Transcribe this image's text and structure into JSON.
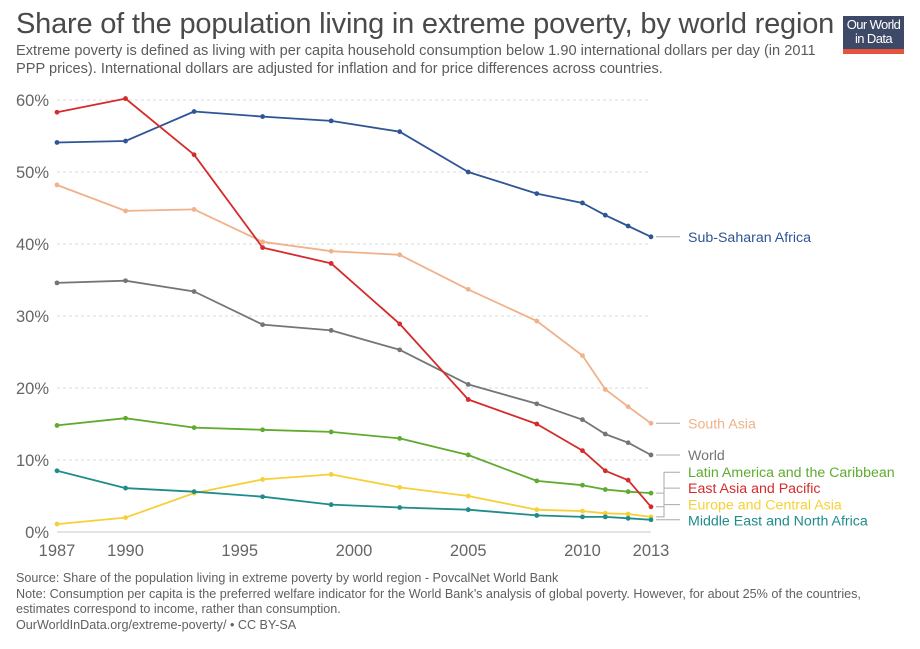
{
  "header": {
    "title": "Share of the population living in extreme poverty, by world region",
    "subtitle": "Extreme poverty is defined as living with per capita household consumption below 1.90 international dollars per day (in 2011 PPP prices). International dollars are adjusted for inflation and for price differences across countries.",
    "logo_line1": "Our World",
    "logo_line2": "in Data"
  },
  "colors": {
    "logo_bg": "#3d4966",
    "logo_accent": "#e5533d"
  },
  "footer": {
    "source": "Source: Share of the population living in extreme poverty by world region - PovcalNet World Bank",
    "note": "Note: Consumption per capita is the preferred welfare indicator for the World Bank’s analysis of global poverty. However, for about 25% of the countries, estimates correspond to income, rather than consumption.",
    "url": "OurWorldInData.org/extreme-poverty/ • CC BY-SA"
  },
  "chart_data": {
    "type": "line",
    "title": "Share of the population living in extreme poverty, by world region",
    "xlabel": "",
    "ylabel": "",
    "x": [
      1987,
      1990,
      1993,
      1996,
      1999,
      2002,
      2005,
      2008,
      2010,
      2011,
      2012,
      2013
    ],
    "xlim": [
      1987,
      2013
    ],
    "ylim": [
      0,
      60
    ],
    "x_ticks": [
      1987,
      1990,
      1995,
      2000,
      2005,
      2010,
      2013
    ],
    "y_ticks": [
      0,
      10,
      20,
      30,
      40,
      50,
      60
    ],
    "y_tick_labels": [
      "0%",
      "10%",
      "20%",
      "30%",
      "40%",
      "50%",
      "60%"
    ],
    "grid": "horizontal dashed",
    "legend": "right (line-end labels)",
    "series": [
      {
        "name": "Sub-Saharan Africa",
        "color": "#2e5596",
        "values": [
          54.1,
          54.3,
          58.4,
          57.7,
          57.1,
          55.6,
          50.0,
          47.0,
          45.7,
          44.0,
          42.5,
          41.0
        ]
      },
      {
        "name": "South Asia",
        "color": "#f0b28a",
        "values": [
          48.2,
          44.6,
          44.8,
          40.3,
          39.0,
          38.5,
          33.7,
          29.3,
          24.5,
          19.8,
          17.4,
          15.1
        ]
      },
      {
        "name": "World",
        "color": "#757575",
        "values": [
          34.6,
          34.9,
          33.4,
          28.8,
          28.0,
          25.3,
          20.5,
          17.8,
          15.6,
          13.6,
          12.4,
          10.7
        ]
      },
      {
        "name": "Latin America and the Caribbean",
        "color": "#5fab2f",
        "values": [
          14.8,
          15.8,
          14.5,
          14.2,
          13.9,
          13.0,
          10.7,
          7.1,
          6.5,
          5.9,
          5.6,
          5.4
        ]
      },
      {
        "name": "East Asia and Pacific",
        "color": "#d42b2b",
        "values": [
          58.3,
          60.2,
          52.4,
          39.5,
          37.3,
          28.9,
          18.4,
          15.0,
          11.3,
          8.5,
          7.2,
          3.5
        ]
      },
      {
        "name": "Europe and Central Asia",
        "color": "#f7d038",
        "values": [
          1.1,
          2.0,
          5.4,
          7.3,
          8.0,
          6.2,
          5.0,
          3.1,
          2.9,
          2.6,
          2.5,
          2.1
        ]
      },
      {
        "name": "Middle East and North Africa",
        "color": "#1f8c8c",
        "values": [
          8.5,
          6.1,
          5.6,
          4.9,
          3.8,
          3.4,
          3.1,
          2.3,
          2.1,
          2.1,
          1.9,
          1.7
        ]
      }
    ],
    "end_labels": [
      {
        "name": "Sub-Saharan Africa",
        "label_value": 41.0
      },
      {
        "name": "South Asia",
        "label_value": 15.1
      },
      {
        "name": "World",
        "label_value": 10.7
      },
      {
        "name": "Latin America and the Caribbean",
        "label_value": 8.3
      },
      {
        "name": "East Asia and Pacific",
        "label_value": 6.1
      },
      {
        "name": "Europe and Central Asia",
        "label_value": 3.8
      },
      {
        "name": "Middle East and North Africa",
        "label_value": 1.6
      }
    ]
  }
}
